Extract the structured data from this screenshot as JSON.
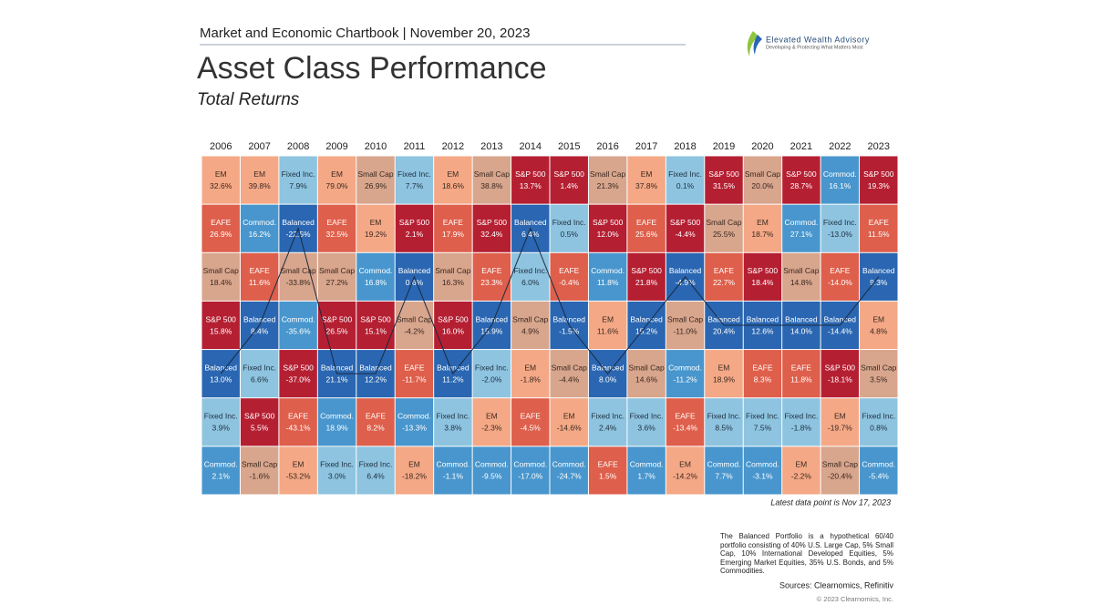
{
  "header": "Market and Economic Chartbook | November 20, 2023",
  "logo": {
    "name": "Elevated Wealth Advisory",
    "tagline": "Developing & Protecting What Matters Most"
  },
  "chart_data": {
    "type": "quilt",
    "title": "Asset Class Performance",
    "subtitle": "Total Returns",
    "assets": [
      {
        "name": "EM",
        "color": "#f4a886",
        "text_color": "#3a2a20"
      },
      {
        "name": "EAFE",
        "color": "#de5f4b",
        "text_color": "#ffffff"
      },
      {
        "name": "S&P 500",
        "color": "#b51f32",
        "text_color": "#ffffff"
      },
      {
        "name": "Small Cap",
        "color": "#d8a58d",
        "text_color": "#3a2a20"
      },
      {
        "name": "Fixed Inc.",
        "color": "#8ec4e0",
        "text_color": "#1f2f40"
      },
      {
        "name": "Commod.",
        "color": "#4896cd",
        "text_color": "#ffffff"
      },
      {
        "name": "Balanced",
        "color": "#2a66b1",
        "text_color": "#ffffff"
      }
    ],
    "columns": [
      {
        "year": "2006",
        "assets": [
          "EM",
          "EAFE",
          "Small Cap",
          "S&P 500",
          "Balanced",
          "Fixed Inc.",
          "Commod."
        ],
        "values": [
          32.6,
          26.9,
          18.4,
          15.8,
          13.0,
          3.9,
          2.1
        ],
        "value_labels": [
          "32.6%",
          "26.9%",
          "18.4%",
          "15.8%",
          "13.0%",
          "3.9%",
          "2.1%"
        ]
      },
      {
        "year": "2007",
        "assets": [
          "EM",
          "Commod.",
          "EAFE",
          "Balanced",
          "Fixed Inc.",
          "S&P 500",
          "Small Cap"
        ],
        "values": [
          39.8,
          16.2,
          11.6,
          8.4,
          6.6,
          5.5,
          -1.6
        ],
        "value_labels": [
          "39.8%",
          "16.2%",
          "11.6%",
          "8.4%",
          "6.6%",
          "5.5%",
          "-1.6%"
        ]
      },
      {
        "year": "2008",
        "assets": [
          "Fixed Inc.",
          "Balanced",
          "Small Cap",
          "Commod.",
          "S&P 500",
          "EAFE",
          "EM"
        ],
        "values": [
          7.9,
          -22.5,
          -33.8,
          -35.6,
          -37.0,
          -43.1,
          -53.2
        ],
        "value_labels": [
          "7.9%",
          "-22.5%",
          "-33.8%",
          "-35.6%",
          "-37.0%",
          "-43.1%",
          "-53.2%"
        ]
      },
      {
        "year": "2009",
        "assets": [
          "EM",
          "EAFE",
          "Small Cap",
          "S&P 500",
          "Balanced",
          "Commod.",
          "Fixed Inc."
        ],
        "values": [
          79.0,
          32.5,
          27.2,
          26.5,
          21.1,
          18.9,
          3.0
        ],
        "value_labels": [
          "79.0%",
          "32.5%",
          "27.2%",
          "26.5%",
          "21.1%",
          "18.9%",
          "3.0%"
        ]
      },
      {
        "year": "2010",
        "assets": [
          "Small Cap",
          "EM",
          "Commod.",
          "S&P 500",
          "Balanced",
          "EAFE",
          "Fixed Inc."
        ],
        "values": [
          26.9,
          19.2,
          16.8,
          15.1,
          12.2,
          8.2,
          6.4
        ],
        "value_labels": [
          "26.9%",
          "19.2%",
          "16.8%",
          "15.1%",
          "12.2%",
          "8.2%",
          "6.4%"
        ]
      },
      {
        "year": "2011",
        "assets": [
          "Fixed Inc.",
          "S&P 500",
          "Balanced",
          "Small Cap",
          "EAFE",
          "Commod.",
          "EM"
        ],
        "values": [
          7.7,
          2.1,
          0.6,
          -4.2,
          -11.7,
          -13.3,
          -18.2
        ],
        "value_labels": [
          "7.7%",
          "2.1%",
          "0.6%",
          "-4.2%",
          "-11.7%",
          "-13.3%",
          "-18.2%"
        ]
      },
      {
        "year": "2012",
        "assets": [
          "EM",
          "EAFE",
          "Small Cap",
          "S&P 500",
          "Balanced",
          "Fixed Inc.",
          "Commod."
        ],
        "values": [
          18.6,
          17.9,
          16.3,
          16.0,
          11.2,
          3.8,
          -1.1
        ],
        "value_labels": [
          "18.6%",
          "17.9%",
          "16.3%",
          "16.0%",
          "11.2%",
          "3.8%",
          "-1.1%"
        ]
      },
      {
        "year": "2013",
        "assets": [
          "Small Cap",
          "S&P 500",
          "EAFE",
          "Balanced",
          "Fixed Inc.",
          "EM",
          "Commod."
        ],
        "values": [
          38.8,
          32.4,
          23.3,
          15.9,
          -2.0,
          -2.3,
          -9.5
        ],
        "value_labels": [
          "38.8%",
          "32.4%",
          "23.3%",
          "15.9%",
          "-2.0%",
          "-2.3%",
          "-9.5%"
        ]
      },
      {
        "year": "2014",
        "assets": [
          "S&P 500",
          "Balanced",
          "Fixed Inc.",
          "Small Cap",
          "EM",
          "EAFE",
          "Commod."
        ],
        "values": [
          13.7,
          6.4,
          6.0,
          4.9,
          -1.8,
          -4.5,
          -17.0
        ],
        "value_labels": [
          "13.7%",
          "6.4%",
          "6.0%",
          "4.9%",
          "-1.8%",
          "-4.5%",
          "-17.0%"
        ]
      },
      {
        "year": "2015",
        "assets": [
          "S&P 500",
          "Fixed Inc.",
          "EAFE",
          "Balanced",
          "Small Cap",
          "EM",
          "Commod."
        ],
        "values": [
          1.4,
          0.5,
          -0.4,
          -1.5,
          -4.4,
          -14.6,
          -24.7
        ],
        "value_labels": [
          "1.4%",
          "0.5%",
          "-0.4%",
          "-1.5%",
          "-4.4%",
          "-14.6%",
          "-24.7%"
        ]
      },
      {
        "year": "2016",
        "assets": [
          "Small Cap",
          "S&P 500",
          "Commod.",
          "EM",
          "Balanced",
          "Fixed Inc.",
          "EAFE"
        ],
        "values": [
          21.3,
          12.0,
          11.8,
          11.6,
          8.0,
          2.4,
          1.5
        ],
        "value_labels": [
          "21.3%",
          "12.0%",
          "11.8%",
          "11.6%",
          "8.0%",
          "2.4%",
          "1.5%"
        ]
      },
      {
        "year": "2017",
        "assets": [
          "EM",
          "EAFE",
          "S&P 500",
          "Balanced",
          "Small Cap",
          "Fixed Inc.",
          "Commod."
        ],
        "values": [
          37.8,
          25.6,
          21.8,
          15.2,
          14.6,
          3.6,
          1.7
        ],
        "value_labels": [
          "37.8%",
          "25.6%",
          "21.8%",
          "15.2%",
          "14.6%",
          "3.6%",
          "1.7%"
        ]
      },
      {
        "year": "2018",
        "assets": [
          "Fixed Inc.",
          "S&P 500",
          "Balanced",
          "Small Cap",
          "Commod.",
          "EAFE",
          "EM"
        ],
        "values": [
          0.1,
          -4.4,
          -4.9,
          -11.0,
          -11.2,
          -13.4,
          -14.2
        ],
        "value_labels": [
          "0.1%",
          "-4.4%",
          "-4.9%",
          "-11.0%",
          "-11.2%",
          "-13.4%",
          "-14.2%"
        ]
      },
      {
        "year": "2019",
        "assets": [
          "S&P 500",
          "Small Cap",
          "EAFE",
          "Balanced",
          "EM",
          "Fixed Inc.",
          "Commod."
        ],
        "values": [
          31.5,
          25.5,
          22.7,
          20.4,
          18.9,
          8.5,
          7.7
        ],
        "value_labels": [
          "31.5%",
          "25.5%",
          "22.7%",
          "20.4%",
          "18.9%",
          "8.5%",
          "7.7%"
        ]
      },
      {
        "year": "2020",
        "assets": [
          "Small Cap",
          "EM",
          "S&P 500",
          "Balanced",
          "EAFE",
          "Fixed Inc.",
          "Commod."
        ],
        "values": [
          20.0,
          18.7,
          18.4,
          12.6,
          8.3,
          7.5,
          -3.1
        ],
        "value_labels": [
          "20.0%",
          "18.7%",
          "18.4%",
          "12.6%",
          "8.3%",
          "7.5%",
          "-3.1%"
        ]
      },
      {
        "year": "2021",
        "assets": [
          "S&P 500",
          "Commod.",
          "Small Cap",
          "Balanced",
          "EAFE",
          "Fixed Inc.",
          "EM"
        ],
        "values": [
          28.7,
          27.1,
          14.8,
          14.0,
          11.8,
          -1.8,
          -2.2
        ],
        "value_labels": [
          "28.7%",
          "27.1%",
          "14.8%",
          "14.0%",
          "11.8%",
          "-1.8%",
          "-2.2%"
        ]
      },
      {
        "year": "2022",
        "assets": [
          "Commod.",
          "Fixed Inc.",
          "EAFE",
          "Balanced",
          "S&P 500",
          "EM",
          "Small Cap"
        ],
        "values": [
          16.1,
          -13.0,
          -14.0,
          -14.4,
          -18.1,
          -19.7,
          -20.4
        ],
        "value_labels": [
          "16.1%",
          "-13.0%",
          "-14.0%",
          "-14.4%",
          "-18.1%",
          "-19.7%",
          "-20.4%"
        ]
      },
      {
        "year": "2023",
        "assets": [
          "S&P 500",
          "EAFE",
          "Balanced",
          "EM",
          "Small Cap",
          "Fixed Inc.",
          "Commod."
        ],
        "values": [
          19.3,
          11.5,
          9.3,
          4.8,
          3.5,
          0.8,
          -5.4
        ],
        "value_labels": [
          "19.3%",
          "11.5%",
          "9.3%",
          "4.8%",
          "3.5%",
          "0.8%",
          "-5.4%"
        ]
      }
    ],
    "note": "Latest data point is Nov 17, 2023"
  },
  "footnote": "The Balanced Portfolio is a hypothetical 60/40 portfolio consisting of 40% U.S. Large Cap, 5% Small Cap, 10% International Developed Equities, 5% Emerging Market Equities, 35% U.S. Bonds, and 5% Commodities.",
  "sources": "Sources: Clearnomics, Refinitiv",
  "copyright": "© 2023 Clearnomics, Inc."
}
